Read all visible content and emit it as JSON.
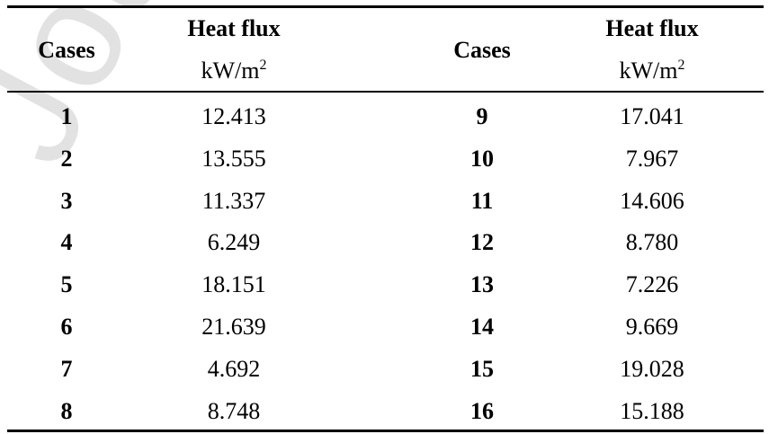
{
  "watermark": {
    "text": "Journ"
  },
  "header": {
    "left_cases": "Cases",
    "left_title": "Heat flux",
    "left_unit_base": "kW/m",
    "left_unit_exp": "2",
    "right_cases": "Cases",
    "right_title": "Heat flux",
    "right_unit_base": "kW/m",
    "right_unit_exp": "2"
  },
  "rows": [
    {
      "case_left": "1",
      "flux_left": "12.413",
      "case_right": "9",
      "flux_right": "17.041"
    },
    {
      "case_left": "2",
      "flux_left": "13.555",
      "case_right": "10",
      "flux_right": "7.967"
    },
    {
      "case_left": "3",
      "flux_left": "11.337",
      "case_right": "11",
      "flux_right": "14.606"
    },
    {
      "case_left": "4",
      "flux_left": "6.249",
      "case_right": "12",
      "flux_right": "8.780"
    },
    {
      "case_left": "5",
      "flux_left": "18.151",
      "case_right": "13",
      "flux_right": "7.226"
    },
    {
      "case_left": "6",
      "flux_left": "21.639",
      "case_right": "14",
      "flux_right": "9.669"
    },
    {
      "case_left": "7",
      "flux_left": "4.692",
      "case_right": "15",
      "flux_right": "19.028"
    },
    {
      "case_left": "8",
      "flux_left": "8.748",
      "case_right": "16",
      "flux_right": "15.188"
    }
  ]
}
